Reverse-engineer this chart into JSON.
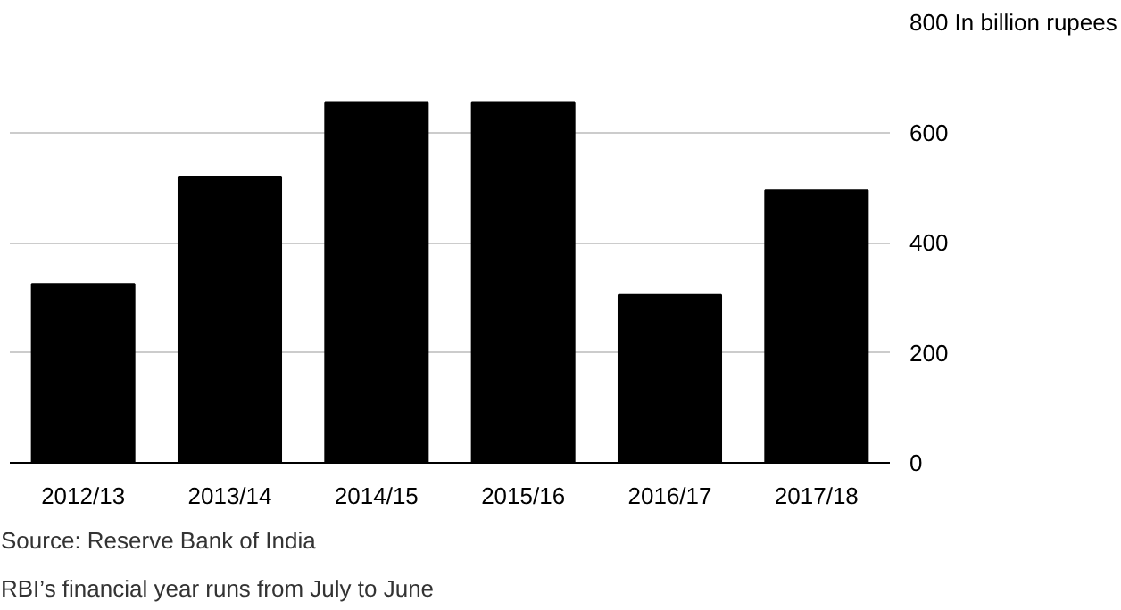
{
  "chart_data": {
    "type": "bar",
    "categories": [
      "2012/13",
      "2013/14",
      "2014/15",
      "2015/16",
      "2016/17",
      "2017/18"
    ],
    "values": [
      325,
      520,
      655,
      655,
      305,
      495
    ],
    "color": "#000000",
    "ylim": [
      0,
      800
    ],
    "yticks": [
      0,
      200,
      400,
      600,
      {
        "value": 800,
        "label": "800 In billion rupees"
      }
    ],
    "grid": "y",
    "annotations": [
      "Source: Reserve Bank of India",
      "RBI’s financial year runs from July to June"
    ]
  }
}
